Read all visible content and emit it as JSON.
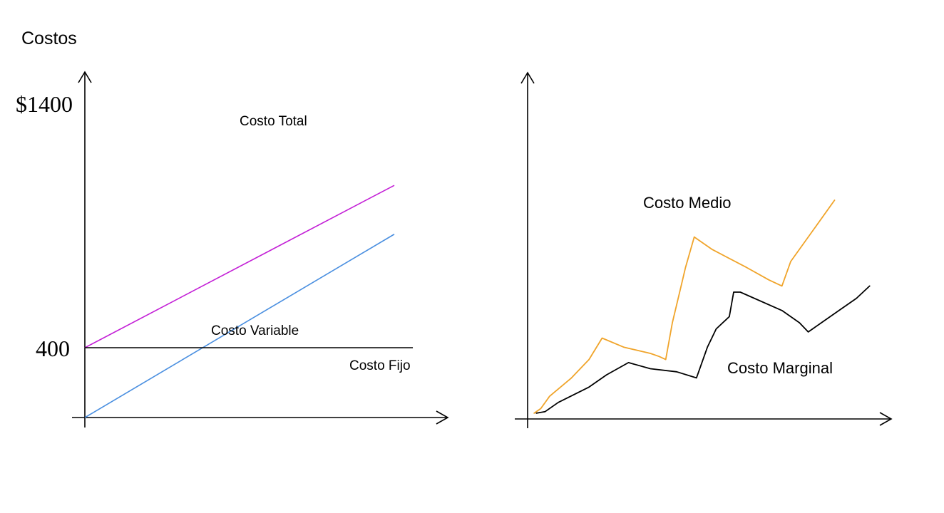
{
  "colors": {
    "axis": "#000000",
    "total": "#c31fd6",
    "variable": "#4a8fe0",
    "fixed": "#000000",
    "medio": "#f0a42a",
    "marginal": "#000000"
  },
  "chart_data": [
    {
      "type": "line",
      "title": "Costos",
      "ytick_labels": [
        "$1400",
        "400"
      ],
      "ylim": [
        0,
        1500
      ],
      "xlim": [
        0,
        10
      ],
      "series": [
        {
          "name": "Costo Total",
          "color_key": "total",
          "points": [
            [
              0,
              400
            ],
            [
              10,
              1330
            ]
          ]
        },
        {
          "name": "Costo Variable",
          "color_key": "variable",
          "points": [
            [
              0,
              0
            ],
            [
              10,
              1050
            ]
          ]
        },
        {
          "name": "Costo Fijo",
          "color_key": "fixed",
          "points": [
            [
              0,
              400
            ],
            [
              10.6,
              400
            ]
          ]
        }
      ]
    },
    {
      "type": "line",
      "title": "",
      "xlim": [
        0,
        10
      ],
      "ylim": [
        0,
        10
      ],
      "series": [
        {
          "name": "Costo Medio",
          "color_key": "medio",
          "points": [
            [
              0.15,
              0.05
            ],
            [
              0.3,
              0.2
            ],
            [
              0.5,
              0.6
            ],
            [
              1.0,
              1.2
            ],
            [
              1.4,
              1.8
            ],
            [
              1.7,
              2.5
            ],
            [
              2.2,
              2.2
            ],
            [
              2.8,
              2.0
            ],
            [
              3.0,
              1.9
            ],
            [
              3.15,
              1.8
            ],
            [
              3.3,
              3.0
            ],
            [
              3.5,
              4.2
            ],
            [
              3.6,
              4.8
            ],
            [
              3.8,
              5.8
            ],
            [
              4.2,
              5.4
            ],
            [
              5.0,
              4.8
            ],
            [
              5.5,
              4.4
            ],
            [
              5.8,
              4.2
            ],
            [
              6.0,
              5.0
            ],
            [
              6.5,
              6.0
            ],
            [
              7.0,
              7.0
            ]
          ]
        },
        {
          "name": "Costo Marginal",
          "color_key": "marginal",
          "points": [
            [
              0.2,
              0.05
            ],
            [
              0.4,
              0.1
            ],
            [
              0.7,
              0.4
            ],
            [
              1.4,
              0.9
            ],
            [
              1.8,
              1.3
            ],
            [
              2.3,
              1.7
            ],
            [
              2.8,
              1.5
            ],
            [
              3.4,
              1.4
            ],
            [
              3.85,
              1.2
            ],
            [
              3.9,
              1.4
            ],
            [
              4.1,
              2.2
            ],
            [
              4.3,
              2.8
            ],
            [
              4.6,
              3.2
            ],
            [
              4.7,
              4.0
            ],
            [
              4.85,
              4.0
            ],
            [
              5.8,
              3.4
            ],
            [
              6.2,
              3.0
            ],
            [
              6.4,
              2.7
            ],
            [
              6.7,
              3.0
            ],
            [
              7.1,
              3.4
            ],
            [
              7.5,
              3.8
            ],
            [
              7.8,
              4.2
            ]
          ]
        }
      ]
    }
  ]
}
